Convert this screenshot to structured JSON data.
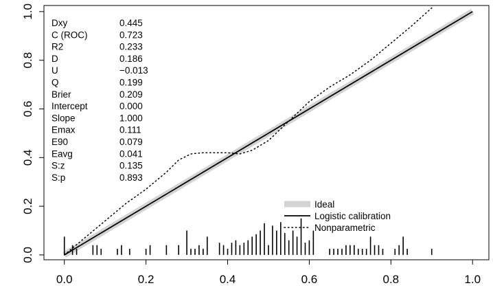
{
  "chart_data": {
    "type": "line",
    "title": "",
    "xlabel": "",
    "ylabel": "",
    "xlim": [
      -0.05,
      1.04
    ],
    "ylim": [
      -0.02,
      1.025
    ],
    "x_ticks": [
      "0.0",
      "0.2",
      "0.4",
      "0.6",
      "0.8",
      "1.0"
    ],
    "y_ticks": [
      "0.0",
      "0.2",
      "0.4",
      "0.6",
      "0.8",
      "1.0"
    ],
    "grid": false,
    "legend_position": "bottom-right",
    "stats": [
      {
        "name": "Dxy",
        "value": "0.445"
      },
      {
        "name": "C (ROC)",
        "value": "0.723"
      },
      {
        "name": "R2",
        "value": "0.233"
      },
      {
        "name": "D",
        "value": "0.186"
      },
      {
        "name": "U",
        "value": "−0.013"
      },
      {
        "name": "Q",
        "value": "0.199"
      },
      {
        "name": "Brier",
        "value": "0.209"
      },
      {
        "name": "Intercept",
        "value": "0.000"
      },
      {
        "name": "Slope",
        "value": "1.000"
      },
      {
        "name": "Emax",
        "value": "0.111"
      },
      {
        "name": "E90",
        "value": "0.079"
      },
      {
        "name": "Eavg",
        "value": "0.041"
      },
      {
        "name": "S:z",
        "value": "0.135"
      },
      {
        "name": "S:p",
        "value": "0.893"
      }
    ],
    "series": [
      {
        "name": "Ideal",
        "style": "thick-gray",
        "color": "#d3d3d3",
        "x": [
          0,
          1
        ],
        "y": [
          0,
          1
        ]
      },
      {
        "name": "Logistic calibration",
        "style": "solid",
        "color": "#000000",
        "x": [
          0,
          1
        ],
        "y": [
          0,
          1
        ]
      },
      {
        "name": "Nonparametric",
        "style": "dotted",
        "color": "#000000",
        "x": [
          0.0,
          0.05,
          0.1,
          0.15,
          0.2,
          0.25,
          0.28,
          0.31,
          0.34,
          0.37,
          0.4,
          0.43,
          0.46,
          0.5,
          0.55,
          0.6,
          0.65,
          0.7,
          0.75,
          0.8,
          0.85,
          0.9
        ],
        "y": [
          0.0,
          0.07,
          0.14,
          0.21,
          0.27,
          0.34,
          0.39,
          0.415,
          0.42,
          0.42,
          0.42,
          0.415,
          0.43,
          0.47,
          0.55,
          0.63,
          0.69,
          0.74,
          0.8,
          0.87,
          0.94,
          1.015
        ]
      }
    ],
    "rug": [
      {
        "x": 0.0,
        "h": 0.075
      },
      {
        "x": 0.02,
        "h": 0.04
      },
      {
        "x": 0.03,
        "h": 0.025
      },
      {
        "x": 0.07,
        "h": 0.04
      },
      {
        "x": 0.08,
        "h": 0.04
      },
      {
        "x": 0.09,
        "h": 0.025
      },
      {
        "x": 0.13,
        "h": 0.025
      },
      {
        "x": 0.14,
        "h": 0.04
      },
      {
        "x": 0.16,
        "h": 0.025
      },
      {
        "x": 0.2,
        "h": 0.025
      },
      {
        "x": 0.21,
        "h": 0.04
      },
      {
        "x": 0.25,
        "h": 0.04
      },
      {
        "x": 0.28,
        "h": 0.04
      },
      {
        "x": 0.3,
        "h": 0.1
      },
      {
        "x": 0.31,
        "h": 0.025
      },
      {
        "x": 0.32,
        "h": 0.025
      },
      {
        "x": 0.33,
        "h": 0.04
      },
      {
        "x": 0.34,
        "h": 0.025
      },
      {
        "x": 0.35,
        "h": 0.075
      },
      {
        "x": 0.38,
        "h": 0.05
      },
      {
        "x": 0.39,
        "h": 0.04
      },
      {
        "x": 0.4,
        "h": 0.025
      },
      {
        "x": 0.41,
        "h": 0.05
      },
      {
        "x": 0.42,
        "h": 0.06
      },
      {
        "x": 0.43,
        "h": 0.04
      },
      {
        "x": 0.44,
        "h": 0.05
      },
      {
        "x": 0.45,
        "h": 0.06
      },
      {
        "x": 0.46,
        "h": 0.075
      },
      {
        "x": 0.47,
        "h": 0.085
      },
      {
        "x": 0.48,
        "h": 0.1
      },
      {
        "x": 0.49,
        "h": 0.13
      },
      {
        "x": 0.5,
        "h": 0.04
      },
      {
        "x": 0.51,
        "h": 0.12
      },
      {
        "x": 0.52,
        "h": 0.1
      },
      {
        "x": 0.53,
        "h": 0.135
      },
      {
        "x": 0.54,
        "h": 0.09
      },
      {
        "x": 0.55,
        "h": 0.06
      },
      {
        "x": 0.56,
        "h": 0.1
      },
      {
        "x": 0.57,
        "h": 0.075
      },
      {
        "x": 0.58,
        "h": 0.15
      },
      {
        "x": 0.59,
        "h": 0.05
      },
      {
        "x": 0.6,
        "h": 0.06
      },
      {
        "x": 0.61,
        "h": 0.1
      },
      {
        "x": 0.65,
        "h": 0.025
      },
      {
        "x": 0.66,
        "h": 0.025
      },
      {
        "x": 0.67,
        "h": 0.025
      },
      {
        "x": 0.68,
        "h": 0.025
      },
      {
        "x": 0.69,
        "h": 0.04
      },
      {
        "x": 0.7,
        "h": 0.04
      },
      {
        "x": 0.71,
        "h": 0.04
      },
      {
        "x": 0.72,
        "h": 0.025
      },
      {
        "x": 0.73,
        "h": 0.025
      },
      {
        "x": 0.74,
        "h": 0.025
      },
      {
        "x": 0.75,
        "h": 0.075
      },
      {
        "x": 0.76,
        "h": 0.04
      },
      {
        "x": 0.77,
        "h": 0.04
      },
      {
        "x": 0.78,
        "h": 0.025
      },
      {
        "x": 0.81,
        "h": 0.025
      },
      {
        "x": 0.82,
        "h": 0.04
      },
      {
        "x": 0.83,
        "h": 0.075
      },
      {
        "x": 0.84,
        "h": 0.025
      },
      {
        "x": 0.9,
        "h": 0.025
      }
    ]
  }
}
